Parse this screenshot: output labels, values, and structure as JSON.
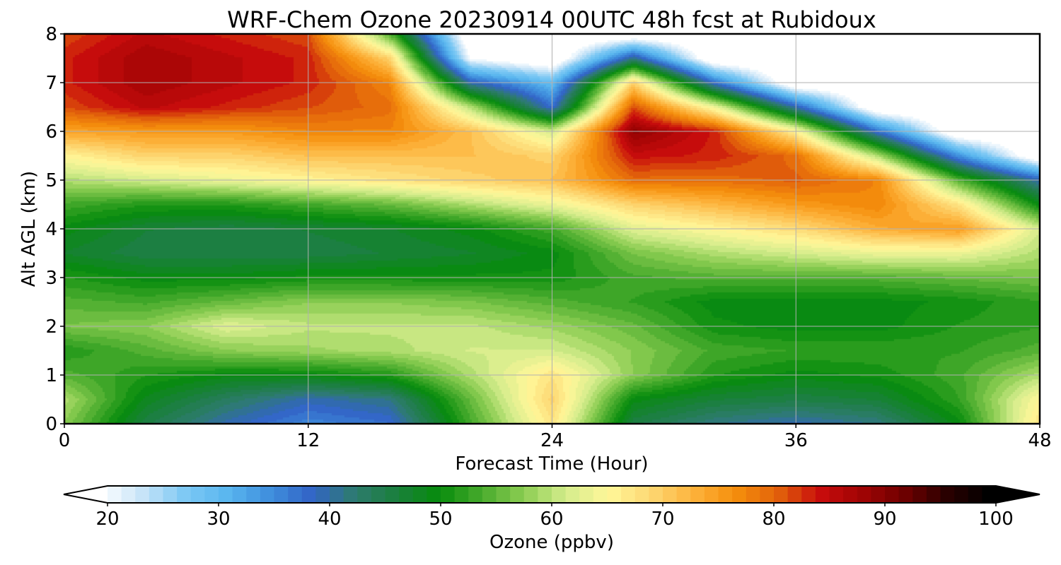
{
  "chart_data": {
    "type": "heatmap",
    "title": "WRF-Chem Ozone  20230914 00UTC 48h fcst at Rubidoux",
    "xlabel": "Forecast Time (Hour)",
    "ylabel": "Alt AGL (km)",
    "xlim": [
      0,
      48
    ],
    "ylim": [
      0,
      8
    ],
    "xticks": [
      0,
      12,
      24,
      36,
      48
    ],
    "yticks": [
      0,
      1,
      2,
      3,
      4,
      5,
      6,
      7,
      8
    ],
    "grid": true,
    "colorbar": {
      "label": "Ozone  (ppbv)",
      "range": [
        20,
        100
      ],
      "ticks": [
        20,
        30,
        40,
        50,
        60,
        70,
        80,
        90,
        100
      ],
      "extend": "both",
      "orientation": "horizontal",
      "placement": "bottom",
      "colors": [
        "#ffffff",
        "#c6e4f8",
        "#7dc8f4",
        "#59b6ef",
        "#3f8fdd",
        "#3264c6",
        "#2e7b6f",
        "#1a7f3c",
        "#078c0c",
        "#47aa2c",
        "#8ccd52",
        "#d4ec8c",
        "#fff799",
        "#fdd773",
        "#fdb33c",
        "#f58f0c",
        "#e2630b",
        "#c80c0c",
        "#a00404",
        "#6e0000",
        "#2a0000",
        "#000000"
      ]
    },
    "x": [
      0,
      4,
      8,
      12,
      16,
      20,
      24,
      28,
      32,
      36,
      40,
      44,
      48
    ],
    "y": [
      0,
      0.5,
      1,
      1.5,
      2,
      2.5,
      3,
      3.5,
      4,
      4.5,
      5,
      5.5,
      6,
      6.5,
      7,
      7.5,
      8
    ],
    "z": [
      [
        58,
        46,
        40,
        36,
        38,
        54,
        68,
        46,
        42,
        40,
        42,
        50,
        68
      ],
      [
        60,
        49,
        44,
        40,
        42,
        56,
        70,
        50,
        47,
        46,
        47,
        53,
        66
      ],
      [
        55,
        52,
        50,
        50,
        52,
        60,
        68,
        58,
        52,
        50,
        51,
        54,
        60
      ],
      [
        52,
        55,
        58,
        59,
        60,
        62,
        62,
        58,
        54,
        53,
        53,
        53,
        55
      ],
      [
        57,
        58,
        63,
        61,
        61,
        61,
        59,
        56,
        51,
        50,
        50,
        52,
        53
      ],
      [
        55,
        54,
        56,
        58,
        58,
        57,
        55,
        53,
        50,
        50,
        50,
        51,
        53
      ],
      [
        52,
        50,
        50,
        51,
        51,
        51,
        51,
        54,
        55,
        55,
        55,
        56,
        57
      ],
      [
        48,
        46,
        46,
        46,
        47,
        48,
        50,
        57,
        60,
        62,
        64,
        64,
        60
      ],
      [
        50,
        47,
        46,
        47,
        48,
        50,
        54,
        63,
        66,
        69,
        74,
        76,
        62
      ],
      [
        54,
        52,
        52,
        54,
        56,
        60,
        64,
        70,
        73,
        76,
        78,
        68,
        50
      ],
      [
        60,
        62,
        64,
        66,
        68,
        70,
        72,
        80,
        80,
        81,
        78,
        55,
        40
      ],
      [
        66,
        70,
        70,
        72,
        72,
        72,
        70,
        85,
        84,
        80,
        60,
        35,
        15
      ],
      [
        75,
        76,
        76,
        78,
        78,
        72,
        62,
        90,
        84,
        66,
        38,
        15,
        15
      ],
      [
        82,
        86,
        84,
        82,
        80,
        60,
        38,
        82,
        64,
        40,
        15,
        15,
        15
      ],
      [
        84,
        88,
        86,
        84,
        78,
        40,
        30,
        70,
        38,
        15,
        15,
        15,
        15
      ],
      [
        84,
        88,
        86,
        84,
        70,
        20,
        15,
        42,
        15,
        15,
        15,
        15,
        15
      ],
      [
        82,
        86,
        84,
        82,
        55,
        15,
        15,
        15,
        15,
        15,
        15,
        15,
        15
      ]
    ]
  }
}
